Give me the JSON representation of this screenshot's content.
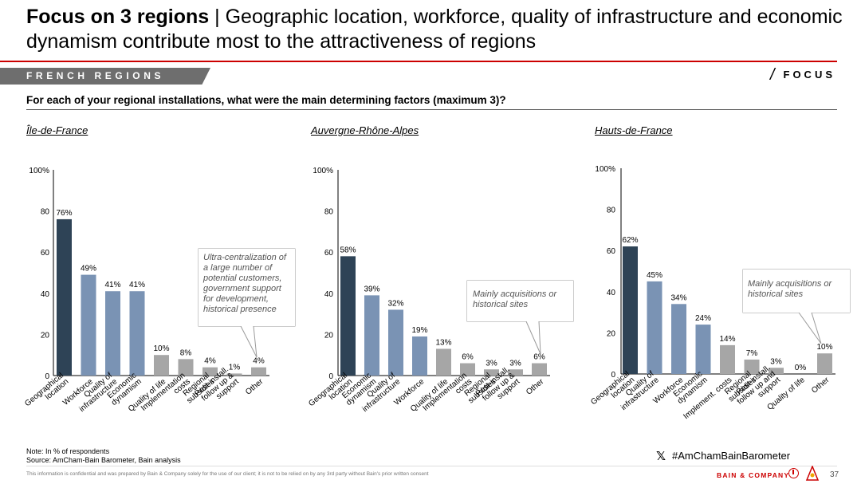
{
  "header": {
    "title_bold": "Focus on 3 regions",
    "title_rest": " | Geographic location, workforce, quality of infrastructure and economic dynamism contribute most to the attractiveness of regions",
    "section_tag": "FRENCH REGIONS",
    "focus_label": "FOCUS",
    "focus_slash": "/"
  },
  "question": "For each of your regional installations, what were the main determining factors (maximum 3)?",
  "colors": {
    "dark": "#2e4356",
    "blue": "#7a93b4",
    "grey": "#a6a6a6",
    "accent_rule": "#cc0000"
  },
  "chart_data": [
    {
      "type": "bar",
      "title": "Île-de-France",
      "ylim": [
        0,
        100
      ],
      "yticks": [
        "0",
        "20",
        "40",
        "60",
        "80",
        "100%"
      ],
      "categories": [
        "Geographical location",
        "Workforce",
        "Quality of infrastructure",
        "Economic dynamism",
        "Quality of life",
        "Implementation costs",
        "Regional subsidies",
        "Post-install. follow up & support",
        "Other"
      ],
      "values": [
        76,
        49,
        41,
        41,
        10,
        8,
        4,
        1,
        4
      ],
      "value_labels": [
        "76%",
        "49%",
        "41%",
        "41%",
        "10%",
        "8%",
        "4%",
        "1%",
        "4%"
      ],
      "bar_colors": [
        "dark",
        "blue",
        "blue",
        "blue",
        "grey",
        "grey",
        "grey",
        "grey",
        "grey"
      ],
      "annotation": "Ultra-centralization of a large number of potential customers, government support for development, historical presence"
    },
    {
      "type": "bar",
      "title": "Auvergne-Rhône-Alpes",
      "ylim": [
        0,
        100
      ],
      "yticks": [
        "0",
        "20",
        "40",
        "60",
        "80",
        "100%"
      ],
      "categories": [
        "Geographical location",
        "Economic dynamism",
        "Quality of infrastructure",
        "Workforce",
        "Quality of life",
        "Implementation costs",
        "Regional subsidies",
        "Post-install. follow up & support",
        "Other"
      ],
      "values": [
        58,
        39,
        32,
        19,
        13,
        6,
        3,
        3,
        6
      ],
      "value_labels": [
        "58%",
        "39%",
        "32%",
        "19%",
        "13%",
        "6%",
        "3%",
        "3%",
        "6%"
      ],
      "bar_colors": [
        "dark",
        "blue",
        "blue",
        "blue",
        "grey",
        "grey",
        "grey",
        "grey",
        "grey"
      ],
      "annotation": "Mainly acquisitions or historical sites"
    },
    {
      "type": "bar",
      "title": "Hauts-de-France",
      "ylim": [
        0,
        100
      ],
      "yticks": [
        "0",
        "20",
        "40",
        "60",
        "80",
        "100%"
      ],
      "categories": [
        "Geographical location",
        "Quality of infrastructure",
        "Workforce",
        "Economic dynamism",
        "Implement. costs",
        "Regional subsidies",
        "Post-install. follow up and support",
        "Quality of life",
        "Other"
      ],
      "values": [
        62,
        45,
        34,
        24,
        14,
        7,
        3,
        0,
        10
      ],
      "value_labels": [
        "62%",
        "45%",
        "34%",
        "24%",
        "14%",
        "7%",
        "3%",
        "0%",
        "10%"
      ],
      "bar_colors": [
        "dark",
        "blue",
        "blue",
        "blue",
        "grey",
        "grey",
        "grey",
        "grey",
        "grey"
      ],
      "annotation": "Mainly acquisitions or historical sites"
    }
  ],
  "footer": {
    "note": "Note: In % of respondents",
    "source": "Source: AmCham-Bain Barometer, Bain analysis",
    "hashtag": "#AmChamBainBarometer",
    "x_icon": "𝕏",
    "confidential": "This information is confidential and was prepared by Bain & Company solely for the use of our client; it is not to be relied on by any 3rd party without Bain's prior written consent",
    "brand": "BAIN & COMPANY",
    "page_number": "37"
  }
}
